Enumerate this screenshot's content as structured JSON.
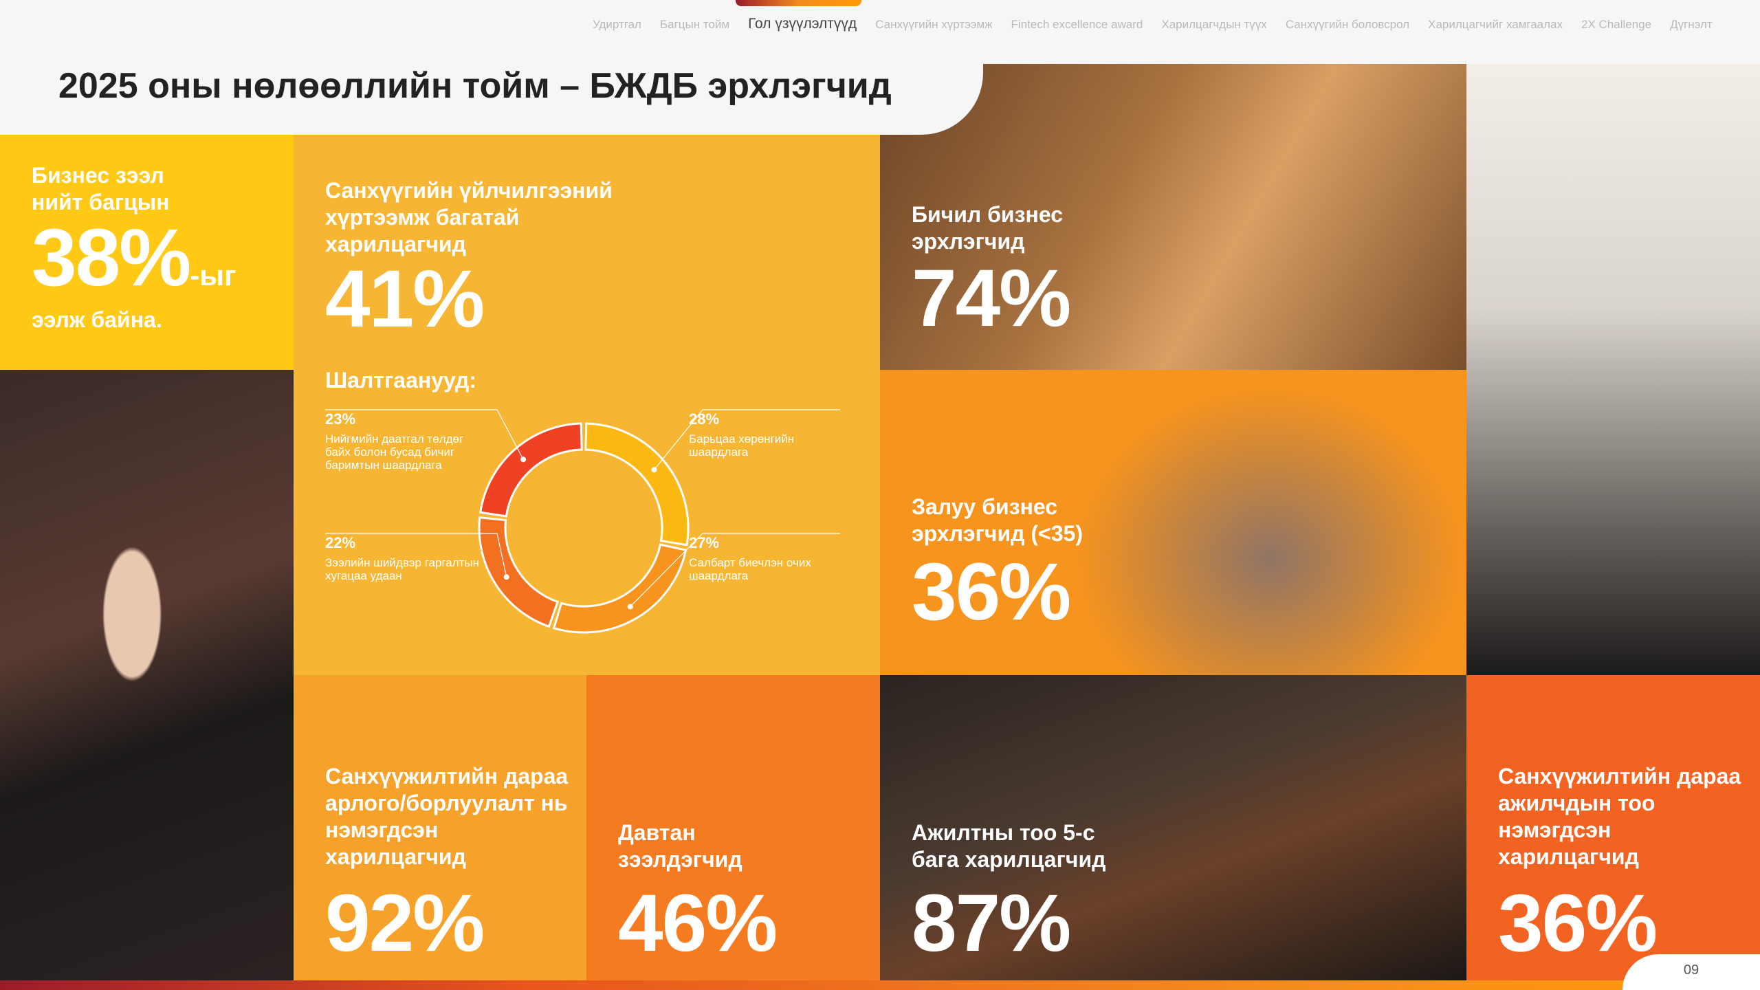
{
  "nav": {
    "items": [
      "Удиртгал",
      "Багцын тойм",
      "Гол үзүүлэлтүүд",
      "Санхүүгийн хүртээмж",
      "Fintech excellence award",
      "Харилцагчдын түүх",
      "Санхүүгийн боловсрол",
      "Харилцагчийг хамгаалах",
      "2X Challenge",
      "Дүгнэлт"
    ],
    "active": "Гол үзүүлэлтүүд"
  },
  "title": "2025 оны нөлөөллийн тойм – БЖДБ эрхлэгчид",
  "cards": {
    "loan_share": {
      "label1": "Бизнес зээл",
      "label2": "нийт багцын",
      "value": "38%",
      "suffix": "-ыг",
      "label3": "ээлж байна."
    },
    "low_access": {
      "label": "Санхүүгийн үйлчилгээний хүртээмж багатай харилцагчид",
      "value": "41%"
    },
    "micro": {
      "label": "Бичил бизнес эрхлэгчид",
      "value": "74%"
    },
    "young": {
      "label": "Залуу бизнес эрхлэгчид (<35)",
      "value": "36%"
    },
    "revenue": {
      "label": "Санхүүжилтийн дараа арлого/борлуулалт нь нэмэгдсэн харилцагчид",
      "value": "92%"
    },
    "repeat": {
      "label": "Давтан зээлдэгчид",
      "value": "46%"
    },
    "small_staff": {
      "label": "Ажилтны тоо 5-с бага харилцагчид",
      "value": "87%"
    },
    "staff_growth": {
      "label": "Санхүүжилтийн дараа ажилчдын тоо нэмэгдсэн харилцагчид",
      "value": "36%"
    }
  },
  "chart_data": {
    "type": "pie",
    "title": "Шалтгаанууд:",
    "slices": [
      {
        "label": "Барьцаа хөрөнгийн шаардлага",
        "value": 28,
        "display": "28%",
        "color": "#FDB913"
      },
      {
        "label": "Салбарт биечлэн очих шаардлага",
        "value": 27,
        "display": "27%",
        "color": "#F7941D"
      },
      {
        "label": "Зээлийн шийдвэр гаргалтын хугацаа удаан",
        "value": 22,
        "display": "22%",
        "color": "#F37021"
      },
      {
        "label": "Нийгмийн даатгал төлдөг байх болон бусад бичиг баримтын шаардлага",
        "value": 23,
        "display": "23%",
        "color": "#EF4123"
      }
    ]
  },
  "page_number": "09",
  "colors": {
    "yellow": "#FFC915",
    "amber": "#F6B634",
    "orange": "#F7941D",
    "orange2": "#F47B20",
    "red_orange": "#F26322"
  }
}
